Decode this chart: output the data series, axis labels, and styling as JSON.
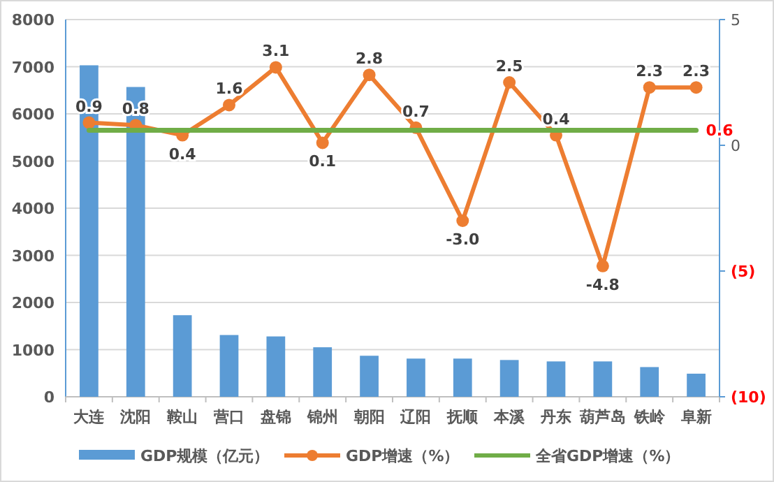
{
  "chart_data": {
    "type": "bar",
    "categories": [
      "大连",
      "沈阳",
      "鞍山",
      "营口",
      "盘锦",
      "锦州",
      "朝阳",
      "辽阳",
      "抚顺",
      "本溪",
      "丹东",
      "葫芦岛",
      "铁岭",
      "阜新"
    ],
    "series": [
      {
        "name": "GDP规模（亿元）",
        "color": "#5b9bd5",
        "values": [
          7030,
          6570,
          1730,
          1310,
          1280,
          1050,
          870,
          810,
          810,
          780,
          750,
          750,
          630,
          490
        ]
      },
      {
        "name": "GDP增速（%）",
        "type": "line",
        "axis": "y2",
        "marker": "circle",
        "color": "#ed7d31",
        "values": [
          0.9,
          0.8,
          0.4,
          1.6,
          3.1,
          0.1,
          2.8,
          0.7,
          -3.0,
          2.5,
          0.4,
          -4.8,
          2.3,
          2.3
        ],
        "value_labels": [
          "0.9",
          "0.8",
          "0.4",
          "1.6",
          "3.1",
          "0.1",
          "2.8",
          "0.7",
          "-3.0",
          "2.5",
          "0.4",
          "-4.8",
          "2.3",
          "2.3"
        ]
      },
      {
        "name": "全省GDP增速（%）",
        "type": "line",
        "axis": "y2",
        "marker": "none",
        "color": "#70ad47",
        "values": [
          0.6,
          0.6,
          0.6,
          0.6,
          0.6,
          0.6,
          0.6,
          0.6,
          0.6,
          0.6,
          0.6,
          0.6,
          0.6,
          0.6
        ],
        "value_labels": [
          null,
          null,
          null,
          null,
          null,
          null,
          null,
          null,
          null,
          null,
          null,
          null,
          null,
          "0.6"
        ]
      }
    ],
    "ylim": [
      0,
      8000
    ],
    "yticks": [
      0,
      1000,
      2000,
      3000,
      4000,
      5000,
      6000,
      7000,
      8000
    ],
    "y2lim": [
      -10,
      5
    ],
    "y2ticks": [
      5,
      0,
      {
        "value": -5,
        "label": "(5)"
      },
      {
        "value": -10,
        "label": "(10)"
      }
    ],
    "grid": "y",
    "legend": "bottom"
  }
}
